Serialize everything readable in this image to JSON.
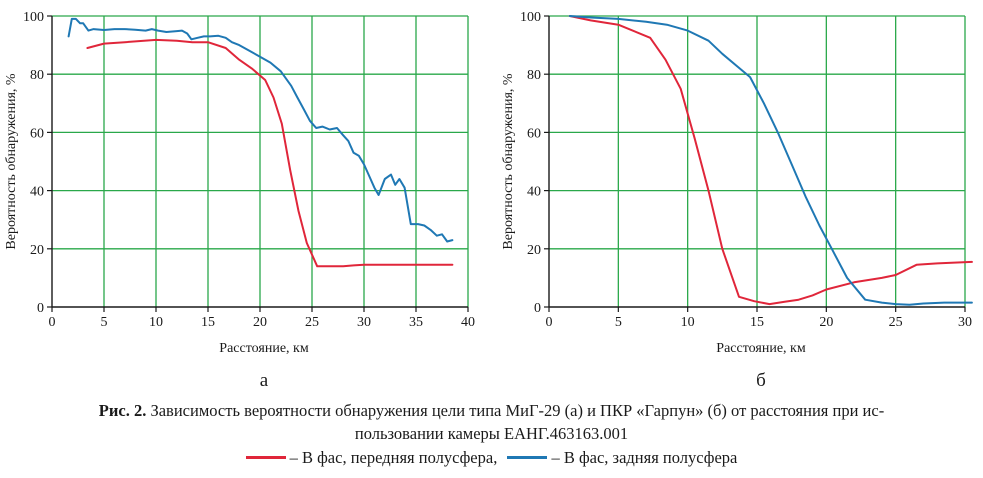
{
  "figure": {
    "caption_label": "Рис. 2.",
    "caption_text": "Зависимость вероятности обнаружения цели типа МиГ-29 (а) и ПКР «Гарпун» (б) от расстояния при ис-",
    "caption_text_2": "пользовании камеры ЕАНГ.463163.001",
    "legend": [
      {
        "label": "– В фас, передняя полусфера,",
        "color": "#e0263a"
      },
      {
        "label": "– В фас, задняя полусфера",
        "color": "#1f78b4"
      }
    ]
  },
  "colors": {
    "grid": "#2aa84a",
    "axis": "#1a1a1a",
    "front": "#e0263a",
    "rear": "#1f78b4"
  },
  "chart_data": [
    {
      "type": "line",
      "panel_label": "а",
      "xlabel": "Расстояние, км",
      "ylabel": "Вероятность обнаружения, %",
      "xlim": [
        0,
        40
      ],
      "ylim": [
        0,
        100
      ],
      "xticks": [
        0,
        5,
        10,
        15,
        20,
        25,
        30,
        35,
        40
      ],
      "yticks": [
        0,
        20,
        40,
        60,
        80,
        100
      ],
      "grid": true,
      "series": [
        {
          "key": "front",
          "x": [
            3.4,
            5,
            7,
            10,
            12,
            13.5,
            15,
            16.7,
            18,
            19.2,
            20.5,
            21.3,
            22.1,
            22.9,
            23.7,
            24.5,
            25.5,
            26.5,
            28,
            29,
            30,
            32,
            34,
            36,
            38.5
          ],
          "y": [
            89,
            90.5,
            91,
            91.8,
            91.5,
            91,
            91,
            89,
            85,
            82,
            78,
            72,
            63,
            47,
            33,
            22,
            14,
            14,
            14,
            14.3,
            14.5,
            14.5,
            14.5,
            14.5,
            14.5
          ]
        },
        {
          "key": "rear",
          "x": [
            1.6,
            1.9,
            2.3,
            2.7,
            3,
            3.5,
            4,
            5,
            6,
            7,
            8,
            9,
            9.6,
            10.2,
            11,
            12,
            12.5,
            13,
            13.4,
            14,
            14.6,
            15.2,
            16,
            16.7,
            17.3,
            18,
            19,
            20,
            21,
            22,
            23,
            23.6,
            24.2,
            24.8,
            25.4,
            26,
            26.7,
            27.4,
            28,
            28.5,
            29,
            29.5,
            30,
            30.5,
            31,
            31.4,
            32,
            32.6,
            33,
            33.4,
            33.9,
            34.5,
            35.2,
            35.8,
            36.4,
            37,
            37.5,
            38,
            38.5
          ],
          "y": [
            93,
            99,
            99,
            97.5,
            97.5,
            95,
            95.5,
            95.2,
            95.5,
            95.5,
            95.3,
            95,
            95.5,
            95,
            94.5,
            94.8,
            95,
            94,
            92,
            92.5,
            93,
            93,
            93.2,
            92.5,
            91,
            90,
            88,
            86,
            84,
            81,
            76,
            72,
            68,
            64,
            61.5,
            62,
            61,
            61.5,
            59,
            57,
            53,
            52,
            49,
            45,
            41,
            38.5,
            44,
            45.5,
            42,
            44,
            41,
            28.5,
            28.5,
            28,
            26.5,
            24.5,
            25,
            22.5,
            23
          ]
        }
      ]
    },
    {
      "type": "line",
      "panel_label": "б",
      "xlabel": "Расстояние, км",
      "ylabel": "Вероятность обнаружения, %",
      "xlim": [
        0,
        30
      ],
      "ylim": [
        0,
        100
      ],
      "xticks": [
        0,
        5,
        10,
        15,
        20,
        25,
        30
      ],
      "yticks": [
        0,
        20,
        40,
        60,
        80,
        100
      ],
      "grid": true,
      "series": [
        {
          "key": "front",
          "x": [
            1.5,
            3,
            5,
            7.3,
            8.4,
            9.5,
            10.5,
            11.5,
            12.5,
            13.7,
            14.8,
            15.9,
            17,
            18,
            19,
            20,
            22,
            24,
            25,
            26.5,
            28,
            30.5
          ],
          "y": [
            100,
            98.5,
            97,
            92.5,
            85,
            75,
            58,
            40,
            20,
            3.5,
            2,
            1,
            1.8,
            2.5,
            4,
            6,
            8.5,
            10,
            11,
            14.5,
            15,
            15.5
          ]
        },
        {
          "key": "rear",
          "x": [
            1.5,
            3,
            5,
            7,
            8.5,
            10,
            11.5,
            12.5,
            13.5,
            14.5,
            15.5,
            16.5,
            17.5,
            18.5,
            19.5,
            20.5,
            21.5,
            22.8,
            24,
            25,
            26,
            27,
            28.5,
            30.5
          ],
          "y": [
            100,
            99.5,
            99,
            98,
            97,
            95,
            91.5,
            87,
            83,
            79,
            70,
            60,
            49,
            38,
            28,
            19,
            10,
            2.5,
            1.5,
            1,
            0.8,
            1.2,
            1.5,
            1.5
          ]
        }
      ]
    }
  ]
}
